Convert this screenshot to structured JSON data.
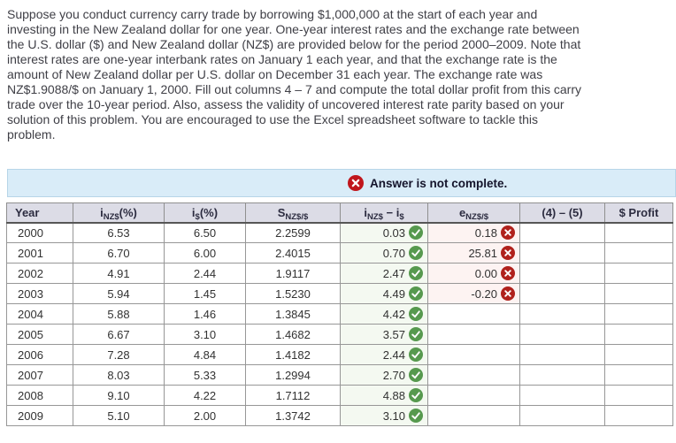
{
  "intro": {
    "lines": [
      "Suppose you conduct currency carry trade by borrowing $1,000,000 at the start of each year and",
      "investing in the New Zealand dollar for one year. One-year interest rates and the exchange rate between",
      "the U.S. dollar ($) and New Zealand dollar (NZ$) are provided below for the period 2000–2009. Note that",
      "interest rates are one-year interbank rates on January 1 each year, and that the exchange rate is the",
      "amount of New Zealand dollar per U.S. dollar on December 31 each year. The exchange rate was",
      "NZ$1.9088/$ on January 1, 2000. Fill out columns 4 – 7 and compute the total dollar profit from this carry",
      "trade over the 10-year period. Also, assess the validity of uncovered interest rate parity based on your",
      "solution of this problem. You are encouraged to use the Excel spreadsheet software to tackle this",
      "problem."
    ]
  },
  "banner": {
    "text": "Answer is not complete.",
    "icon": "error-x-circle"
  },
  "table": {
    "columns": [
      {
        "name": "year",
        "segments": [
          {
            "t": "Year"
          }
        ]
      },
      {
        "name": "i-nz-pct",
        "segments": [
          {
            "t": "i"
          },
          {
            "t": "NZ$",
            "sub": true
          },
          {
            "t": "(%)"
          }
        ]
      },
      {
        "name": "i-us-pct",
        "segments": [
          {
            "t": "i"
          },
          {
            "t": "$",
            "sub": true
          },
          {
            "t": "(%)"
          }
        ]
      },
      {
        "name": "spot-rate",
        "segments": [
          {
            "t": "S"
          },
          {
            "t": "NZ$/$",
            "sub": true
          }
        ]
      },
      {
        "name": "interest-diff",
        "segments": [
          {
            "t": "i"
          },
          {
            "t": "NZ$",
            "sub": true
          },
          {
            "t": " − "
          },
          {
            "t": "i"
          },
          {
            "t": "$",
            "sub": true
          }
        ]
      },
      {
        "name": "exchange-change",
        "segments": [
          {
            "t": "e"
          },
          {
            "t": "NZ$/$",
            "sub": true
          }
        ]
      },
      {
        "name": "col4-minus-col5",
        "segments": [
          {
            "t": "(4) – (5)"
          }
        ]
      },
      {
        "name": "dollar-profit",
        "segments": [
          {
            "t": "$ Profit"
          }
        ]
      }
    ],
    "rows": [
      {
        "cells": [
          {
            "t": "2000"
          },
          {
            "t": "6.53"
          },
          {
            "t": "6.50"
          },
          {
            "t": "2.2599"
          },
          {
            "t": "0.03",
            "icon": "check",
            "tint": "green"
          },
          {
            "t": "0.18",
            "icon": "x",
            "tint": "pink"
          },
          {
            "t": "",
            "input": true
          },
          {
            "t": "",
            "input": true
          }
        ]
      },
      {
        "cells": [
          {
            "t": "2001"
          },
          {
            "t": "6.70"
          },
          {
            "t": "6.00"
          },
          {
            "t": "2.4015"
          },
          {
            "t": "0.70",
            "icon": "check",
            "tint": "green"
          },
          {
            "t": "25.81",
            "icon": "x",
            "tint": "pink"
          },
          {
            "t": "",
            "input": true
          },
          {
            "t": "",
            "input": true
          }
        ]
      },
      {
        "cells": [
          {
            "t": "2002"
          },
          {
            "t": "4.91"
          },
          {
            "t": "2.44"
          },
          {
            "t": "1.9117"
          },
          {
            "t": "2.47",
            "icon": "check",
            "tint": "green"
          },
          {
            "t": "0.00",
            "icon": "x",
            "tint": "pink"
          },
          {
            "t": "",
            "input": true
          },
          {
            "t": "",
            "input": true
          }
        ]
      },
      {
        "cells": [
          {
            "t": "2003"
          },
          {
            "t": "5.94"
          },
          {
            "t": "1.45"
          },
          {
            "t": "1.5230"
          },
          {
            "t": "4.49",
            "icon": "check",
            "tint": "green"
          },
          {
            "t": "-0.20",
            "icon": "x",
            "tint": "pink"
          },
          {
            "t": "",
            "input": true
          },
          {
            "t": "",
            "input": true
          }
        ]
      },
      {
        "cells": [
          {
            "t": "2004"
          },
          {
            "t": "5.88"
          },
          {
            "t": "1.46"
          },
          {
            "t": "1.3845"
          },
          {
            "t": "4.42",
            "icon": "check",
            "tint": "green"
          },
          {
            "t": "",
            "input": true
          },
          {
            "t": "",
            "input": true
          },
          {
            "t": "",
            "input": true
          }
        ]
      },
      {
        "cells": [
          {
            "t": "2005"
          },
          {
            "t": "6.67"
          },
          {
            "t": "3.10"
          },
          {
            "t": "1.4682"
          },
          {
            "t": "3.57",
            "icon": "check",
            "tint": "green"
          },
          {
            "t": "",
            "input": true
          },
          {
            "t": "",
            "input": true
          },
          {
            "t": "",
            "input": true
          }
        ]
      },
      {
        "cells": [
          {
            "t": "2006"
          },
          {
            "t": "7.28"
          },
          {
            "t": "4.84"
          },
          {
            "t": "1.4182"
          },
          {
            "t": "2.44",
            "icon": "check",
            "tint": "green"
          },
          {
            "t": "",
            "input": true
          },
          {
            "t": "",
            "input": true
          },
          {
            "t": "",
            "input": true
          }
        ]
      },
      {
        "cells": [
          {
            "t": "2007"
          },
          {
            "t": "8.03"
          },
          {
            "t": "5.33"
          },
          {
            "t": "1.2994"
          },
          {
            "t": "2.70",
            "icon": "check",
            "tint": "green"
          },
          {
            "t": "",
            "input": true
          },
          {
            "t": "",
            "input": true
          },
          {
            "t": "",
            "input": true
          }
        ]
      },
      {
        "cells": [
          {
            "t": "2008"
          },
          {
            "t": "9.10"
          },
          {
            "t": "4.22"
          },
          {
            "t": "1.7112"
          },
          {
            "t": "4.88",
            "icon": "check",
            "tint": "green"
          },
          {
            "t": "",
            "input": true
          },
          {
            "t": "",
            "input": true
          },
          {
            "t": "",
            "input": true
          }
        ]
      },
      {
        "cells": [
          {
            "t": "2009"
          },
          {
            "t": "5.10"
          },
          {
            "t": "2.00"
          },
          {
            "t": "1.3742"
          },
          {
            "t": "3.10",
            "icon": "check",
            "tint": "green"
          },
          {
            "t": "",
            "input": true
          },
          {
            "t": "",
            "input": true
          },
          {
            "t": "",
            "input": true
          }
        ]
      }
    ]
  },
  "icons": {
    "banner_error": "x-circle",
    "correct": "check-circle",
    "incorrect": "x-circle"
  },
  "colors": {
    "banner_bg": "#d9ecf8",
    "banner_border": "#b7d5e8",
    "banner_text": "#14142b",
    "banner_error_red": "#c0161c",
    "header_bg": "#dcdce6",
    "header_text": "#2c2c40",
    "correct_green": "#56994e",
    "incorrect_red": "#b0211c",
    "tint_green": "#f4f9f1",
    "tint_pink": "#fdf3f2",
    "body_text": "#3f3f46"
  }
}
